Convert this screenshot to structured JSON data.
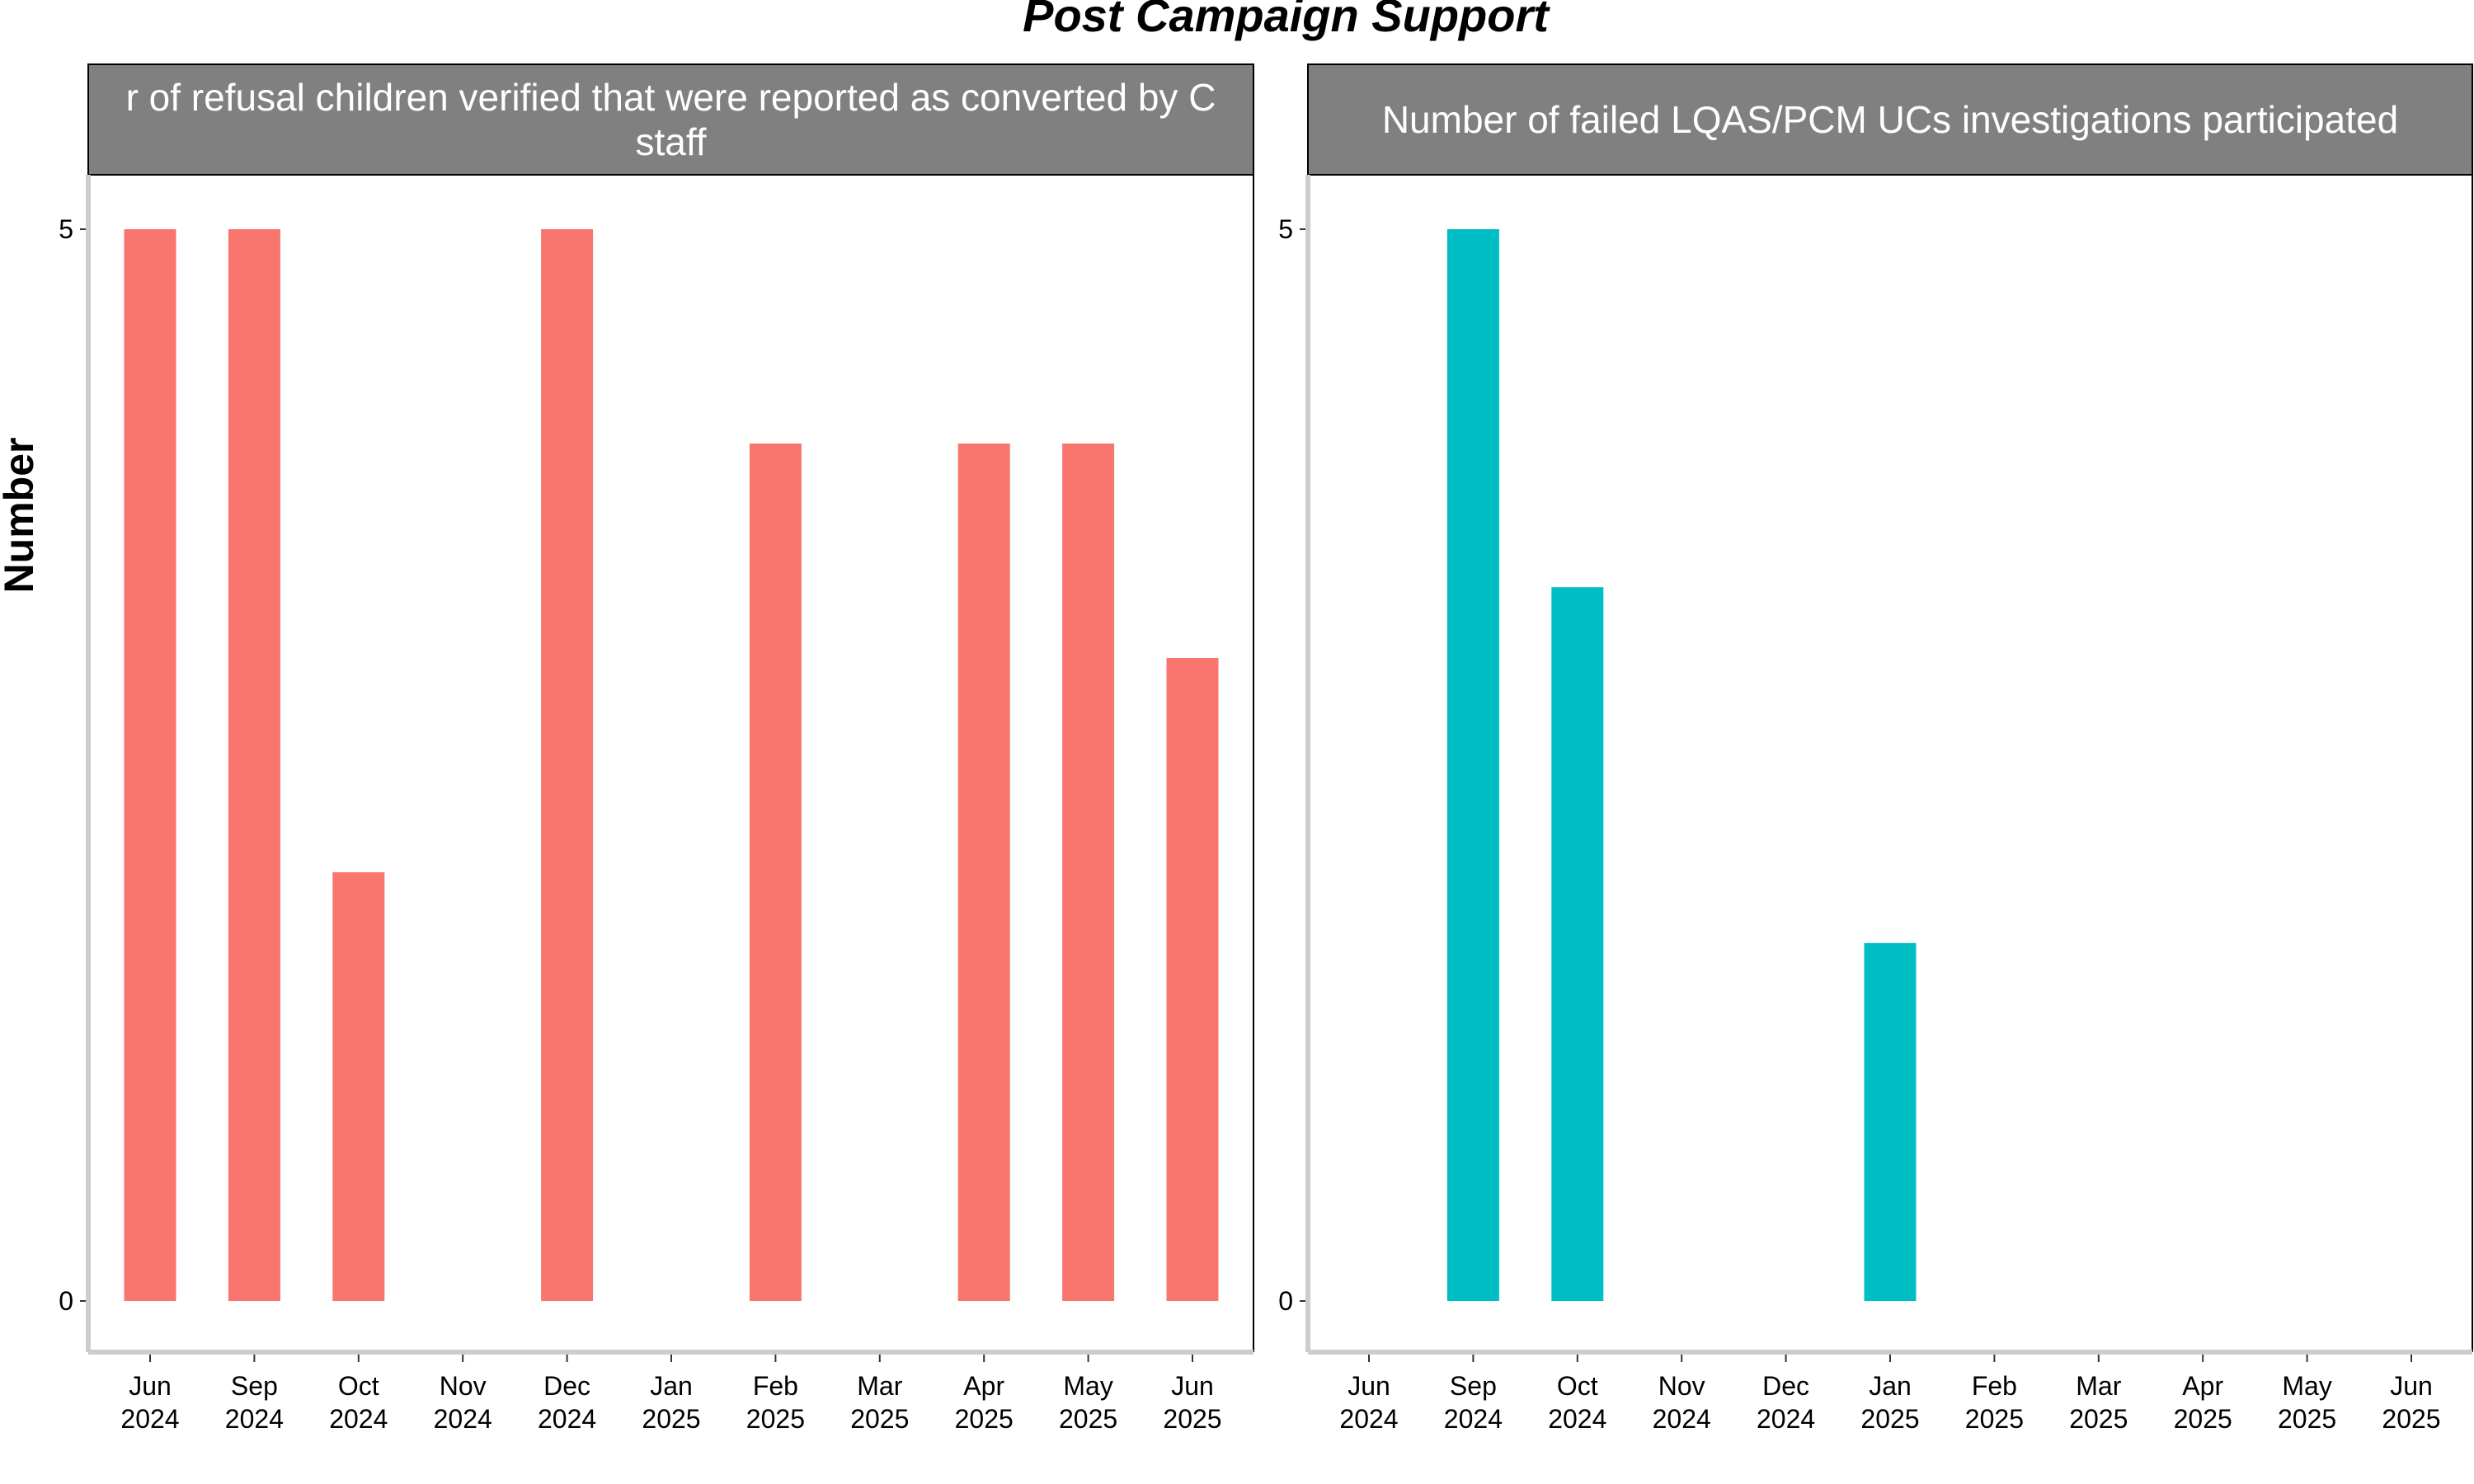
{
  "title": "Post Campaign Support",
  "ylabel": "Number",
  "colors": {
    "strip_bg": "#808080",
    "axis": "#cccccc",
    "panel_border": "#000000",
    "text": "#000000"
  },
  "chart_data": [
    {
      "type": "bar",
      "strip_lines": [
        "r of refusal children verified that were reported as converted by C",
        "staff"
      ],
      "color": "#F8766D",
      "categories": [
        "Jun\n2024",
        "Sep\n2024",
        "Oct\n2024",
        "Nov\n2024",
        "Dec\n2024",
        "Jan\n2025",
        "Feb\n2025",
        "Mar\n2025",
        "Apr\n2025",
        "May\n2025",
        "Jun\n2025"
      ],
      "values": [
        5,
        5,
        2,
        null,
        5,
        null,
        4,
        null,
        4,
        4,
        3
      ],
      "ylim": [
        0,
        5
      ],
      "yticks": [
        0,
        5
      ],
      "grid": false
    },
    {
      "type": "bar",
      "strip_lines": [
        "Number of failed LQAS/PCM UCs investigations participated"
      ],
      "color": "#00BFC4",
      "categories": [
        "Jun\n2024",
        "Sep\n2024",
        "Oct\n2024",
        "Nov\n2024",
        "Dec\n2024",
        "Jan\n2025",
        "Feb\n2025",
        "Mar\n2025",
        "Apr\n2025",
        "May\n2025",
        "Jun\n2025"
      ],
      "values": [
        null,
        5,
        3.33,
        null,
        null,
        1.67,
        null,
        null,
        null,
        null,
        null
      ],
      "ylim": [
        0,
        5
      ],
      "yticks": [
        0,
        5
      ],
      "grid": false
    }
  ]
}
